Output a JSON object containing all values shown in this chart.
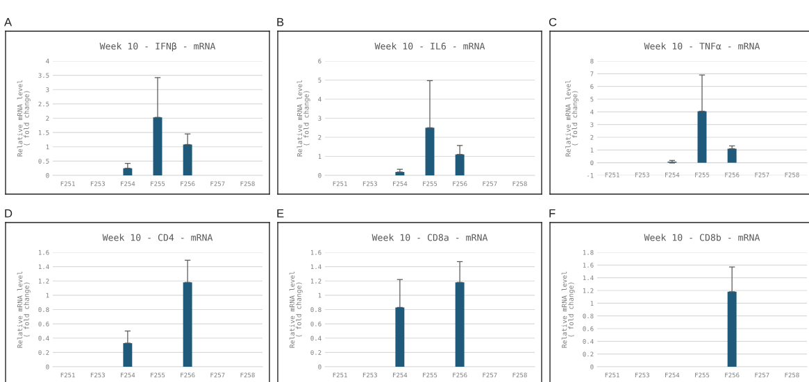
{
  "chart_data": [
    {
      "type": "bar",
      "title": "Week 10 - IFNβ - mRNA",
      "ylabel": "Relative mRNA level\n( fold change)",
      "annotations": [
        "A"
      ],
      "categories": [
        "F251",
        "F253",
        "F254",
        "F255",
        "F256",
        "F257",
        "F258"
      ],
      "values": [
        null,
        null,
        0.25,
        2.03,
        1.08,
        null,
        null
      ],
      "errors": [
        null,
        null,
        [
          0.25,
          0.42
        ],
        [
          2.03,
          3.42
        ],
        [
          1.08,
          1.45
        ],
        null,
        null
      ],
      "color": "#1f5a7a",
      "ylim": [
        0,
        4
      ],
      "yticks": [
        0,
        0.5,
        1,
        1.5,
        2,
        2.5,
        3,
        3.5,
        4
      ],
      "grid": "y",
      "legend": false
    },
    {
      "type": "bar",
      "title": "Week 10 - IL6 - mRNA",
      "ylabel": "Relative mRNA level\n( fold change)",
      "annotations": [
        "B"
      ],
      "categories": [
        "F251",
        "F253",
        "F254",
        "F255",
        "F256",
        "F257",
        "F258"
      ],
      "values": [
        null,
        null,
        0.18,
        2.5,
        1.1,
        null,
        null
      ],
      "errors": [
        null,
        null,
        [
          0.18,
          0.32
        ],
        [
          2.5,
          4.97
        ],
        [
          1.1,
          1.57
        ],
        null,
        null
      ],
      "color": "#1f5a7a",
      "ylim": [
        0,
        6
      ],
      "yticks": [
        0,
        1,
        2,
        3,
        4,
        5,
        6
      ],
      "grid": "y",
      "legend": false
    },
    {
      "type": "bar",
      "title": "Week 10 - TNFα - mRNA",
      "ylabel": "Relative mRNA level\n( fold change)",
      "annotations": [
        "C"
      ],
      "categories": [
        "F251",
        "F253",
        "F254",
        "F255",
        "F256",
        "F257",
        "F258"
      ],
      "values": [
        null,
        null,
        0.08,
        4.05,
        1.1,
        null,
        null
      ],
      "errors": [
        null,
        null,
        [
          -0.02,
          0.18
        ],
        [
          4.05,
          6.9
        ],
        [
          1.1,
          1.32
        ],
        null,
        null
      ],
      "color": "#1f5a7a",
      "ylim": [
        -1,
        8
      ],
      "yticks": [
        -1,
        0,
        1,
        2,
        3,
        4,
        5,
        6,
        7,
        8
      ],
      "grid": "y",
      "legend": false
    },
    {
      "type": "bar",
      "title": "Week 10 - CD4 - mRNA",
      "ylabel": "Relative mRNA level\n( fold change)",
      "annotations": [
        "D"
      ],
      "categories": [
        "F251",
        "F253",
        "F254",
        "F255",
        "F256",
        "F257",
        "F258"
      ],
      "values": [
        null,
        null,
        0.33,
        null,
        1.18,
        null,
        null
      ],
      "errors": [
        null,
        null,
        [
          0.33,
          0.5
        ],
        null,
        [
          1.18,
          1.49
        ],
        null,
        null
      ],
      "color": "#1f5a7a",
      "ylim": [
        0,
        1.6
      ],
      "yticks": [
        0,
        0.2,
        0.4,
        0.6,
        0.8,
        1,
        1.2,
        1.4,
        1.6
      ],
      "grid": "y",
      "legend": false
    },
    {
      "type": "bar",
      "title": "Week 10 - CD8a - mRNA",
      "ylabel": "Relative mRNA level\n( fold change)",
      "annotations": [
        "E"
      ],
      "categories": [
        "F251",
        "F253",
        "F254",
        "F255",
        "F256",
        "F257",
        "F258"
      ],
      "values": [
        null,
        null,
        0.83,
        null,
        1.18,
        null,
        null
      ],
      "errors": [
        null,
        null,
        [
          0.83,
          1.22
        ],
        null,
        [
          1.18,
          1.47
        ],
        null,
        null
      ],
      "color": "#1f5a7a",
      "ylim": [
        0,
        1.6
      ],
      "yticks": [
        0,
        0.2,
        0.4,
        0.6,
        0.8,
        1,
        1.2,
        1.4,
        1.6
      ],
      "grid": "y",
      "legend": false
    },
    {
      "type": "bar",
      "title": "Week 10 - CD8b - mRNA",
      "ylabel": "Relative mRNA level\n( fold change)",
      "annotations": [
        "F"
      ],
      "categories": [
        "F251",
        "F253",
        "F254",
        "F255",
        "F256",
        "F257",
        "F258"
      ],
      "values": [
        null,
        null,
        null,
        null,
        1.18,
        null,
        null
      ],
      "errors": [
        null,
        null,
        null,
        null,
        [
          1.18,
          1.57
        ],
        null,
        null
      ],
      "color": "#1f5a7a",
      "ylim": [
        0,
        1.8
      ],
      "yticks": [
        0,
        0.2,
        0.4,
        0.6,
        0.8,
        1,
        1.2,
        1.4,
        1.6,
        1.8
      ],
      "grid": "y",
      "legend": false
    }
  ]
}
